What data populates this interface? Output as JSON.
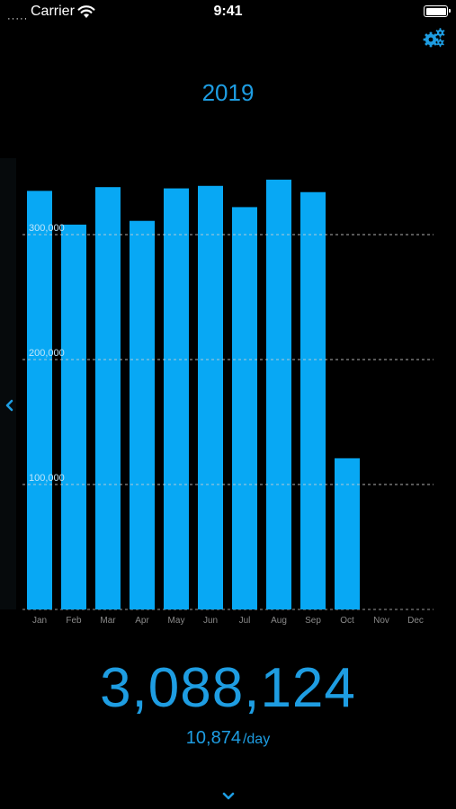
{
  "status_bar": {
    "signal": "·····",
    "carrier": "Carrier",
    "time": "9:41"
  },
  "header": {
    "year": "2019"
  },
  "icons": {
    "settings": "gears-icon",
    "prev": "chevron-left-icon",
    "next": "chevron-down-icon",
    "wifi": "wifi-icon",
    "battery": "battery-icon"
  },
  "colors": {
    "accent": "#1e9de2",
    "bar": "#08a8f4",
    "background": "#000000"
  },
  "chart_data": {
    "type": "bar",
    "categories": [
      "Jan",
      "Feb",
      "Mar",
      "Apr",
      "May",
      "Jun",
      "Jul",
      "Aug",
      "Sep",
      "Oct",
      "Nov",
      "Dec"
    ],
    "values": [
      335000,
      308000,
      338000,
      311000,
      337000,
      339000,
      322000,
      344000,
      334000,
      121000,
      null,
      null
    ],
    "yticks": [
      100000,
      200000,
      300000
    ],
    "ytick_labels": [
      "100,000",
      "200,000",
      "300,000"
    ],
    "ylim": [
      0,
      360000
    ],
    "grid": "horizontal dashed",
    "title": "",
    "xlabel": "",
    "ylabel": ""
  },
  "summary": {
    "total": "3,088,124",
    "per_day": "10,874",
    "per_day_unit": "/day"
  }
}
